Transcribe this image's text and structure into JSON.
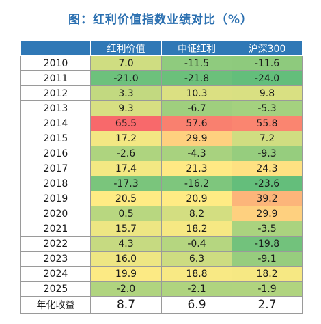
{
  "title": "图：红利价值指数业绩对比（%）",
  "chart_data": {
    "type": "heatmap",
    "title": "图：红利价值指数业绩对比（%）",
    "header_corner": "",
    "columns": [
      "红利价值",
      "中证红利",
      "沪深300"
    ],
    "rows": [
      {
        "label": "2010",
        "values": [
          7.0,
          -11.5,
          -11.6
        ]
      },
      {
        "label": "2011",
        "values": [
          -21.0,
          -21.8,
          -24.0
        ]
      },
      {
        "label": "2012",
        "values": [
          3.3,
          10.3,
          9.8
        ]
      },
      {
        "label": "2013",
        "values": [
          9.3,
          -6.7,
          -5.3
        ]
      },
      {
        "label": "2014",
        "values": [
          65.5,
          57.6,
          55.8
        ]
      },
      {
        "label": "2015",
        "values": [
          17.2,
          29.9,
          7.2
        ]
      },
      {
        "label": "2016",
        "values": [
          -2.6,
          -4.3,
          -9.3
        ]
      },
      {
        "label": "2017",
        "values": [
          17.4,
          21.3,
          24.3
        ]
      },
      {
        "label": "2018",
        "values": [
          -17.3,
          -16.2,
          -23.6
        ]
      },
      {
        "label": "2019",
        "values": [
          20.5,
          20.9,
          39.2
        ]
      },
      {
        "label": "2020",
        "values": [
          0.5,
          8.2,
          29.9
        ]
      },
      {
        "label": "2021",
        "values": [
          15.7,
          18.2,
          -3.5
        ]
      },
      {
        "label": "2022",
        "values": [
          4.3,
          -0.4,
          -19.8
        ]
      },
      {
        "label": "2023",
        "values": [
          16.0,
          6.3,
          -9.1
        ]
      },
      {
        "label": "2024",
        "values": [
          19.9,
          18.8,
          18.2
        ]
      },
      {
        "label": "2025",
        "values": [
          -2.0,
          -2.1,
          -1.9
        ]
      }
    ],
    "summary_row": {
      "label": "年化收益",
      "values": [
        8.7,
        6.9,
        2.7
      ]
    },
    "color_scale": {
      "min": -24.0,
      "max": 65.5,
      "low": "#63be7b",
      "mid": "#ffeb84",
      "high": "#f8696b"
    },
    "header_color": "#2f78b6",
    "title_color": "#2a6fb0"
  }
}
